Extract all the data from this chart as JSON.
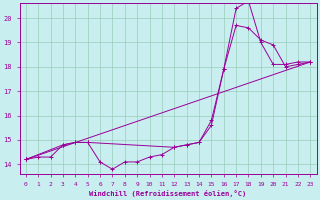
{
  "xlabel": "Windchill (Refroidissement éolien,°C)",
  "background_color": "#c8eef0",
  "grid_color": "#99ccbb",
  "line_color": "#990099",
  "xlim": [
    -0.5,
    23.5
  ],
  "ylim": [
    13.6,
    20.6
  ],
  "xticks": [
    0,
    1,
    2,
    3,
    4,
    5,
    6,
    7,
    8,
    9,
    10,
    11,
    12,
    13,
    14,
    15,
    16,
    17,
    18,
    19,
    20,
    21,
    22,
    23
  ],
  "yticks": [
    14,
    15,
    16,
    17,
    18,
    19,
    20
  ],
  "series1_x": [
    0,
    1,
    2,
    3,
    4,
    5,
    6,
    7,
    8,
    9,
    10,
    11,
    12,
    13,
    14,
    15,
    16,
    17,
    18,
    19,
    20,
    21,
    22,
    23
  ],
  "series1_y": [
    14.2,
    14.3,
    14.3,
    14.8,
    14.9,
    14.9,
    14.1,
    13.8,
    14.1,
    14.1,
    14.3,
    14.4,
    14.7,
    14.8,
    14.9,
    15.6,
    17.9,
    20.4,
    20.7,
    19.0,
    18.1,
    18.1,
    18.2,
    18.2
  ],
  "series2_x": [
    0,
    3,
    4,
    5,
    12,
    13,
    14,
    15,
    16,
    17,
    18,
    19,
    20,
    21,
    22,
    23
  ],
  "series2_y": [
    14.2,
    14.8,
    14.9,
    14.9,
    14.7,
    14.8,
    14.9,
    15.8,
    17.9,
    19.7,
    19.6,
    19.1,
    18.9,
    18.0,
    18.1,
    18.2
  ],
  "series3_x": [
    0,
    23
  ],
  "series3_y": [
    14.2,
    18.2
  ]
}
